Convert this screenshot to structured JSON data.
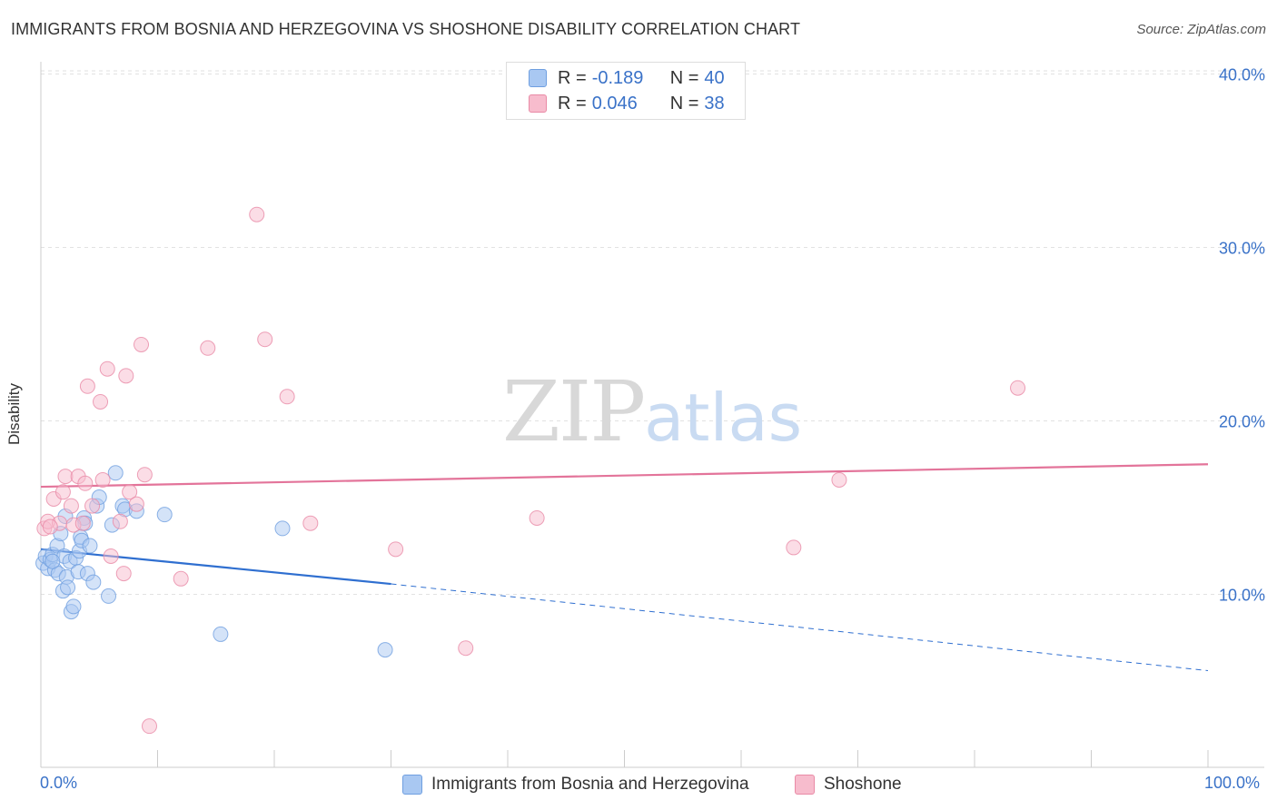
{
  "header": {
    "title": "IMMIGRANTS FROM BOSNIA AND HERZEGOVINA VS SHOSHONE DISABILITY CORRELATION CHART",
    "source": "Source: ZipAtlas.com"
  },
  "watermark": {
    "zip": "ZIP",
    "atlas": "atlas"
  },
  "legend": {
    "rows": [
      {
        "r_label": "R =",
        "r_value": "-0.189",
        "n_label": "N =",
        "n_value": "40",
        "color": "#a9c8f2"
      },
      {
        "r_label": "R =",
        "r_value": "0.046",
        "n_label": "N =",
        "n_value": "38",
        "color": "#f7bccd"
      }
    ]
  },
  "chart_data": {
    "type": "scatter",
    "title": "IMMIGRANTS FROM BOSNIA AND HERZEGOVINA VS SHOSHONE DISABILITY CORRELATION CHART",
    "xlabel": "",
    "ylabel": "Disability",
    "xlim": [
      0,
      100
    ],
    "ylim": [
      0,
      42
    ],
    "x_tick_labels": [
      "0.0%",
      "100.0%"
    ],
    "y_ticks": [
      10,
      20,
      30,
      40
    ],
    "y_tick_labels": [
      "10.0%",
      "20.0%",
      "30.0%",
      "40.0%"
    ],
    "grid": true,
    "legend_position": "top-center",
    "series": [
      {
        "name": "Immigrants from Bosnia and Herzegovina",
        "color": "#6f9fe0",
        "fill": "#a9c8f2",
        "points": [
          [
            0.2,
            11.8
          ],
          [
            0.4,
            12.2
          ],
          [
            0.6,
            11.5
          ],
          [
            0.8,
            12.0
          ],
          [
            1.0,
            12.3
          ],
          [
            1.2,
            11.4
          ],
          [
            1.4,
            12.8
          ],
          [
            1.5,
            11.2
          ],
          [
            1.7,
            13.5
          ],
          [
            1.9,
            10.2
          ],
          [
            2.0,
            12.2
          ],
          [
            2.1,
            14.5
          ],
          [
            2.2,
            11.0
          ],
          [
            2.3,
            10.4
          ],
          [
            2.5,
            11.9
          ],
          [
            2.6,
            9.0
          ],
          [
            2.8,
            9.3
          ],
          [
            3.0,
            12.1
          ],
          [
            3.2,
            11.3
          ],
          [
            3.3,
            12.5
          ],
          [
            3.4,
            13.3
          ],
          [
            3.5,
            13.1
          ],
          [
            3.7,
            14.4
          ],
          [
            3.8,
            14.1
          ],
          [
            4.0,
            11.2
          ],
          [
            4.2,
            12.8
          ],
          [
            4.5,
            10.7
          ],
          [
            4.8,
            15.1
          ],
          [
            5.0,
            15.6
          ],
          [
            5.8,
            9.9
          ],
          [
            6.1,
            14.0
          ],
          [
            6.4,
            17.0
          ],
          [
            7.0,
            15.1
          ],
          [
            7.2,
            14.9
          ],
          [
            8.2,
            14.8
          ],
          [
            10.6,
            14.6
          ],
          [
            15.4,
            7.7
          ],
          [
            20.7,
            13.8
          ],
          [
            29.5,
            6.8
          ],
          [
            1.0,
            11.9
          ]
        ]
      },
      {
        "name": "Shoshone",
        "color": "#e98aa6",
        "fill": "#f7bccd",
        "points": [
          [
            0.3,
            13.8
          ],
          [
            0.6,
            14.2
          ],
          [
            1.1,
            15.5
          ],
          [
            1.6,
            14.1
          ],
          [
            1.9,
            15.9
          ],
          [
            2.1,
            16.8
          ],
          [
            2.6,
            15.1
          ],
          [
            2.8,
            14.0
          ],
          [
            3.2,
            16.8
          ],
          [
            3.6,
            14.1
          ],
          [
            3.8,
            16.4
          ],
          [
            4.0,
            22.0
          ],
          [
            4.4,
            15.1
          ],
          [
            5.1,
            21.1
          ],
          [
            5.3,
            16.6
          ],
          [
            5.7,
            23.0
          ],
          [
            6.0,
            12.2
          ],
          [
            6.8,
            14.2
          ],
          [
            7.1,
            11.2
          ],
          [
            7.3,
            22.6
          ],
          [
            7.6,
            15.9
          ],
          [
            8.2,
            15.2
          ],
          [
            8.6,
            24.4
          ],
          [
            8.9,
            16.9
          ],
          [
            9.3,
            2.4
          ],
          [
            12.0,
            10.9
          ],
          [
            14.3,
            24.2
          ],
          [
            18.5,
            31.9
          ],
          [
            19.2,
            24.7
          ],
          [
            21.1,
            21.4
          ],
          [
            23.1,
            14.1
          ],
          [
            30.4,
            12.6
          ],
          [
            36.4,
            6.9
          ],
          [
            42.5,
            14.4
          ],
          [
            64.5,
            12.7
          ],
          [
            68.4,
            16.6
          ],
          [
            83.7,
            21.9
          ],
          [
            0.8,
            13.9
          ]
        ]
      }
    ],
    "trend_lines": [
      {
        "series": "Immigrants from Bosnia and Herzegovina",
        "color": "#2f6fd0",
        "solid": [
          [
            0,
            12.6
          ],
          [
            30,
            10.6
          ]
        ],
        "dashed": [
          [
            30,
            10.6
          ],
          [
            100,
            5.6
          ]
        ]
      },
      {
        "series": "Shoshone",
        "color": "#e3749a",
        "solid": [
          [
            0,
            16.2
          ],
          [
            100,
            17.5
          ]
        ]
      }
    ]
  }
}
